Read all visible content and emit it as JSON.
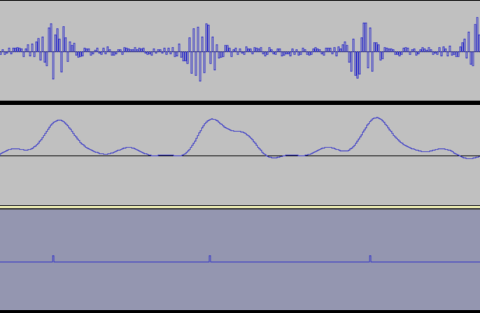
{
  "colors": {
    "track_background": "#c0c0c0",
    "selected_track_background": "#9496b0",
    "waveform": "#3232c8",
    "baseline": "#000000",
    "separator": "#e8e8b0"
  },
  "tracks": [
    {
      "kind": "audio-waveform",
      "selected": false
    },
    {
      "kind": "envelope-waveform",
      "selected": false
    },
    {
      "kind": "pulse-waveform",
      "selected": true
    }
  ]
}
